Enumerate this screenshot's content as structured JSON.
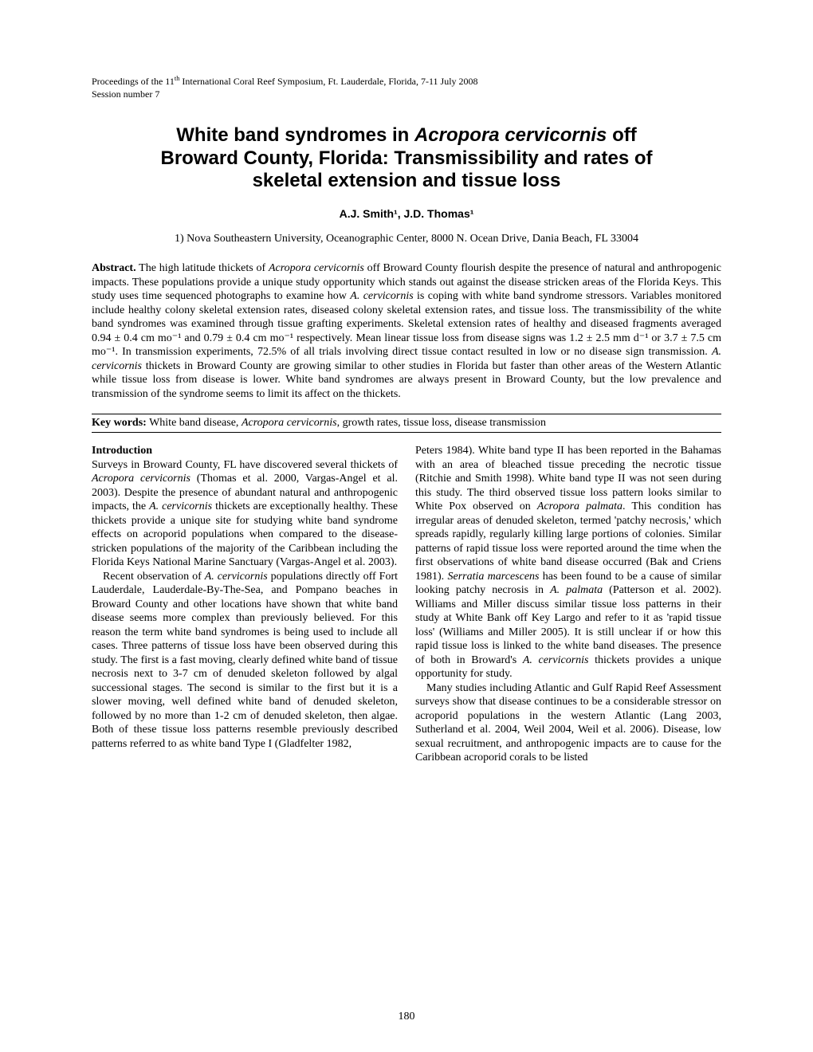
{
  "header": {
    "proceedings": "Proceedings of the 11th International Coral Reef Symposium, Ft. Lauderdale, Florida, 7-11 July 2008",
    "session": "Session number 7"
  },
  "title": {
    "line1": "White band syndromes in ",
    "italic1": "Acropora cervicornis",
    "line1_cont": " off",
    "line2": "Broward County, Florida: Transmissibility and rates of",
    "line3": "skeletal extension and tissue loss"
  },
  "authors": "A.J. Smith¹, J.D. Thomas¹",
  "affiliation": "1) Nova Southeastern University, Oceanographic Center, 8000 N. Ocean Drive, Dania Beach, FL 33004",
  "abstract": {
    "label": "Abstract.",
    "text_parts": [
      " The high latitude thickets of ",
      " off Broward County flourish despite the presence of natural and anthropogenic impacts. These populations provide a unique study opportunity which stands out against the disease stricken areas of the Florida Keys. This study uses time sequenced photographs to examine how ",
      " is coping with white band syndrome stressors. Variables monitored include healthy colony skeletal extension rates, diseased colony skeletal extension rates, and tissue loss. The transmissibility of the white band syndromes was examined through tissue grafting experiments. Skeletal extension rates of healthy and diseased fragments averaged 0.94 ± 0.4 cm mo⁻¹ and 0.79 ± 0.4 cm mo⁻¹ respectively. Mean linear tissue loss from disease signs was 1.2 ± 2.5 mm d⁻¹ or 3.7 ± 7.5 cm mo⁻¹. In transmission experiments, 72.5% of all trials involving direct tissue contact resulted in low or no disease sign transmission. ",
      " thickets in Broward County are growing similar to other studies in Florida but faster than other areas of the Western Atlantic while tissue loss from disease is lower. White band syndromes are always present in Broward County, but the low prevalence and transmission of the syndrome seems to limit its affect on the thickets."
    ],
    "italics": [
      "Acropora cervicornis",
      "A. cervicornis",
      "A. cervicornis"
    ]
  },
  "keywords": {
    "label": "Key words:",
    "text": " White band disease, ",
    "italic": "Acropora cervicornis",
    "text2": ", growth rates, tissue loss, disease transmission"
  },
  "body": {
    "col1": {
      "heading": "Introduction",
      "p1_parts": [
        "Surveys in Broward County, FL have discovered several thickets of ",
        " (Thomas et al. 2000, Vargas-Angel et al. 2003). Despite the presence of abundant natural and anthropogenic impacts, the ",
        " thickets are exceptionally healthy. These thickets provide a unique site for studying white band syndrome effects on acroporid populations when compared to the disease-stricken populations of the majority of the Caribbean including the Florida Keys National Marine Sanctuary (Vargas-Angel et al. 2003)."
      ],
      "p1_italics": [
        "Acropora cervicornis",
        "A. cervicornis"
      ],
      "p2_parts": [
        "Recent observation of ",
        " populations directly off Fort Lauderdale, Lauderdale-By-The-Sea, and Pompano beaches in Broward County and other locations have shown that white band disease seems more complex than previously believed. For this reason the term white band syndromes is being used to include all cases. Three patterns of tissue loss have been observed during this study. The first is a fast moving, clearly defined white band of tissue necrosis next to 3-7 cm of denuded skeleton followed by algal successional stages. The second is similar to the first but it is a slower moving, well defined white band of denuded skeleton, followed by no more than 1-2 cm of denuded skeleton, then algae. Both of these tissue loss patterns resemble previously described patterns referred to as white band Type I (Gladfelter 1982,"
      ],
      "p2_italics": [
        "A. cervicornis"
      ]
    },
    "col2": {
      "p1_parts": [
        "Peters 1984). White band type II has been reported in the Bahamas with an area of bleached tissue preceding the necrotic tissue (Ritchie and Smith 1998). White band type II was not seen during this study. The third observed tissue loss pattern looks similar to White Pox observed on ",
        ". This condition has irregular areas of denuded skeleton, termed 'patchy necrosis,' which spreads rapidly, regularly killing large portions of colonies. Similar patterns of rapid tissue loss were reported around the time when the first observations of white band disease occurred (Bak and Criens 1981). ",
        " has been found to be a cause of similar looking patchy necrosis in ",
        " (Patterson et al. 2002). Williams and Miller discuss similar tissue loss patterns in their study at White Bank off Key Largo and refer to it as 'rapid tissue loss' (Williams and Miller 2005). It is still unclear if or how this rapid tissue loss is linked to the white band diseases. The presence of both in Broward's ",
        " thickets provides a unique opportunity for study."
      ],
      "p1_italics": [
        "Acropora palmata",
        "Serratia marcescens",
        "A. palmata",
        "A. cervicornis"
      ],
      "p2": "Many studies including Atlantic and Gulf Rapid Reef Assessment surveys show that disease continues to be a considerable stressor on acroporid populations in the western Atlantic (Lang 2003, Sutherland et al. 2004, Weil 2004, Weil et al. 2006). Disease, low sexual recruitment, and anthropogenic impacts are to cause for the Caribbean acroporid corals to be listed"
    }
  },
  "page_number": "180"
}
